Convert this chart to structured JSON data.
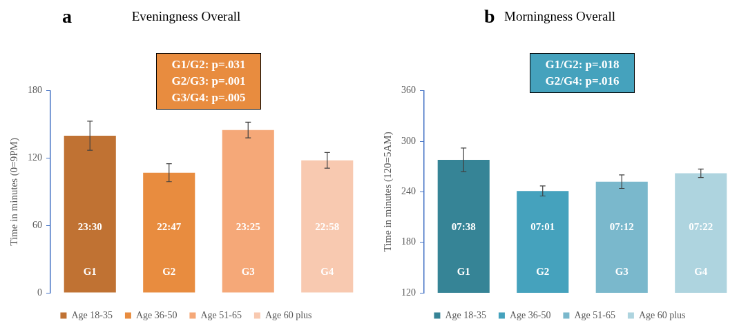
{
  "chart_data": [
    {
      "type": "bar",
      "title": "Eveningness Overall",
      "ylabel": "Time in minutes (0=9PM)",
      "categories": [
        "G1",
        "G2",
        "G3",
        "G4"
      ],
      "series": [
        {
          "name": "Age 18-35",
          "color": "#c07233",
          "values": [
            140,
            null,
            null,
            null
          ],
          "errors": [
            13,
            null,
            null,
            null
          ]
        },
        {
          "name": "Age 36-50",
          "color": "#e88c3f",
          "values": [
            null,
            107,
            null,
            null
          ],
          "errors": [
            null,
            8,
            null,
            null
          ]
        },
        {
          "name": "Age 51-65",
          "color": "#f5a878",
          "values": [
            null,
            null,
            145,
            null
          ],
          "errors": [
            null,
            null,
            7,
            null
          ]
        },
        {
          "name": "Age 60 plus",
          "color": "#f8c9b0",
          "values": [
            null,
            null,
            null,
            118
          ],
          "errors": [
            null,
            null,
            null,
            7
          ]
        }
      ],
      "ylim": [
        0,
        180
      ],
      "yticks": [
        0,
        60,
        120,
        180
      ],
      "grid": false,
      "legend": "bottom",
      "annotations": [
        "a",
        "G1/G2: p=.031",
        "G2/G3: p=.001",
        "G3/G4: p=.005",
        "23:30",
        "22:47",
        "23:25",
        "22:58"
      ]
    },
    {
      "type": "bar",
      "title": "Morningness Overall",
      "ylabel": "Time in minutes (120=5AM)",
      "categories": [
        "G1",
        "G2",
        "G3",
        "G4"
      ],
      "series": [
        {
          "name": "Age 18-35",
          "color": "#368496",
          "values": [
            278,
            null,
            null,
            null
          ],
          "errors": [
            14,
            null,
            null,
            null
          ]
        },
        {
          "name": "Age 36-50",
          "color": "#45a2bd",
          "values": [
            null,
            241,
            null,
            null
          ],
          "errors": [
            null,
            6,
            null,
            null
          ]
        },
        {
          "name": "Age 51-65",
          "color": "#7ab8cc",
          "values": [
            null,
            null,
            252,
            null
          ],
          "errors": [
            null,
            null,
            8,
            null
          ]
        },
        {
          "name": "Age 60 plus",
          "color": "#aed4df",
          "values": [
            null,
            null,
            null,
            262
          ],
          "errors": [
            null,
            null,
            null,
            5
          ]
        }
      ],
      "ylim": [
        120,
        360
      ],
      "yticks": [
        120,
        180,
        240,
        300,
        360
      ],
      "grid": false,
      "legend": "bottom",
      "annotations": [
        "b",
        "G1/G2: p=.018",
        "G2/G4: p=.016",
        "07:38",
        "07:01",
        "07:12",
        "07:22"
      ]
    }
  ]
}
